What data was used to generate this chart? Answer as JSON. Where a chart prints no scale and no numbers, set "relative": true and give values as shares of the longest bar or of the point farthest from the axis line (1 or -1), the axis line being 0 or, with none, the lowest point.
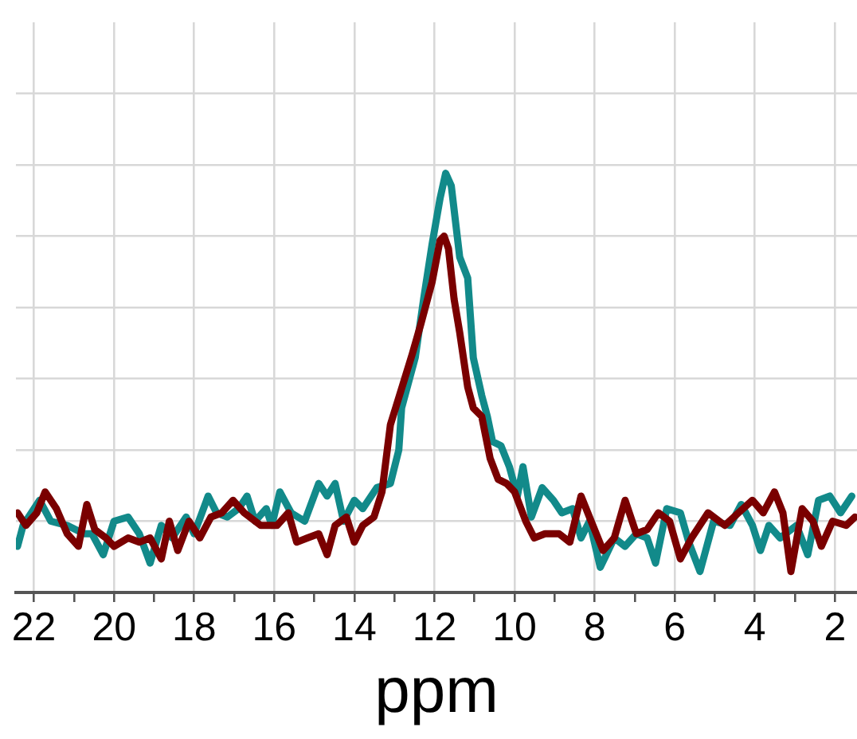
{
  "chart_data": {
    "type": "line",
    "xlabel": "ppm",
    "relative": true,
    "grid": true,
    "legend": false,
    "marker": "none",
    "line_style": "solid",
    "xlim": [
      22.45,
      1.45
    ],
    "xticks": [
      22,
      {
        "value": 21,
        "label": null
      },
      20,
      {
        "value": 19,
        "label": null
      },
      18,
      {
        "value": 17,
        "label": null
      },
      16,
      {
        "value": 15,
        "label": null
      },
      14,
      {
        "value": 13,
        "label": null
      },
      12,
      {
        "value": 11,
        "label": null
      },
      10,
      {
        "value": 9,
        "label": null
      },
      8,
      {
        "value": 7,
        "label": null
      },
      6,
      {
        "value": 5,
        "label": null
      },
      4,
      {
        "value": 3,
        "label": null
      },
      2
    ],
    "series": [
      {
        "color": "#7a0000",
        "x": [
          22.41,
          22.2,
          21.93,
          21.72,
          21.44,
          21.17,
          20.89,
          20.68,
          20.48,
          20.2,
          20.0,
          19.65,
          19.37,
          19.1,
          18.82,
          18.62,
          18.41,
          18.13,
          17.86,
          17.58,
          17.31,
          17.03,
          16.75,
          16.34,
          15.93,
          15.65,
          15.44,
          15.17,
          14.89,
          14.68,
          14.48,
          14.2,
          14.0,
          13.79,
          13.51,
          13.31,
          13.1,
          12.55,
          12.34,
          12.06,
          11.86,
          11.76,
          11.65,
          11.51,
          11.37,
          11.17,
          11.03,
          10.82,
          10.61,
          10.41,
          10.2,
          10.0,
          9.72,
          9.51,
          9.24,
          8.89,
          8.62,
          8.34,
          8.13,
          7.79,
          7.51,
          7.24,
          6.96,
          6.69,
          6.41,
          6.13,
          5.86,
          5.58,
          5.17,
          4.75,
          4.41,
          4.06,
          3.79,
          3.51,
          3.3,
          3.1,
          2.82,
          2.55,
          2.34,
          2.06,
          1.72,
          1.5
        ],
        "values": [
          0.19,
          0.16,
          0.19,
          0.24,
          0.2,
          0.14,
          0.11,
          0.21,
          0.15,
          0.13,
          0.11,
          0.13,
          0.12,
          0.13,
          0.08,
          0.17,
          0.1,
          0.17,
          0.13,
          0.18,
          0.19,
          0.22,
          0.19,
          0.16,
          0.16,
          0.19,
          0.12,
          0.13,
          0.14,
          0.09,
          0.16,
          0.18,
          0.12,
          0.16,
          0.18,
          0.24,
          0.4,
          0.57,
          0.64,
          0.74,
          0.84,
          0.85,
          0.82,
          0.7,
          0.62,
          0.49,
          0.44,
          0.42,
          0.32,
          0.27,
          0.26,
          0.24,
          0.17,
          0.13,
          0.14,
          0.14,
          0.12,
          0.23,
          0.18,
          0.1,
          0.13,
          0.22,
          0.14,
          0.15,
          0.19,
          0.17,
          0.08,
          0.13,
          0.19,
          0.16,
          0.19,
          0.22,
          0.19,
          0.24,
          0.19,
          0.05,
          0.2,
          0.17,
          0.11,
          0.17,
          0.16,
          0.18
        ]
      },
      {
        "color": "#128a8a",
        "x": [
          22.41,
          22.27,
          21.86,
          21.58,
          21.17,
          20.75,
          20.55,
          20.27,
          20.0,
          19.65,
          19.37,
          19.1,
          18.82,
          18.55,
          18.2,
          18.0,
          17.65,
          17.44,
          17.17,
          16.89,
          16.68,
          16.48,
          16.2,
          16.06,
          15.86,
          15.58,
          15.24,
          14.89,
          14.68,
          14.48,
          14.27,
          14.0,
          13.79,
          13.44,
          13.1,
          12.89,
          12.82,
          12.48,
          12.27,
          12.06,
          11.86,
          11.72,
          11.58,
          11.37,
          11.17,
          11.03,
          10.82,
          10.68,
          10.55,
          10.34,
          10.13,
          9.93,
          9.79,
          9.58,
          9.31,
          9.03,
          8.82,
          8.55,
          8.34,
          8.13,
          7.86,
          7.51,
          7.24,
          6.96,
          6.69,
          6.48,
          6.2,
          5.86,
          5.65,
          5.37,
          5.03,
          4.62,
          4.34,
          4.06,
          3.86,
          3.65,
          3.37,
          2.96,
          2.68,
          2.41,
          2.13,
          1.86,
          1.58
        ],
        "values": [
          0.11,
          0.16,
          0.22,
          0.17,
          0.16,
          0.14,
          0.14,
          0.09,
          0.17,
          0.18,
          0.14,
          0.07,
          0.16,
          0.13,
          0.18,
          0.14,
          0.23,
          0.19,
          0.18,
          0.2,
          0.23,
          0.17,
          0.2,
          0.16,
          0.24,
          0.19,
          0.17,
          0.26,
          0.23,
          0.26,
          0.17,
          0.22,
          0.2,
          0.25,
          0.26,
          0.34,
          0.44,
          0.56,
          0.7,
          0.83,
          0.94,
          1,
          0.97,
          0.8,
          0.75,
          0.56,
          0.47,
          0.42,
          0.36,
          0.35,
          0.3,
          0.23,
          0.3,
          0.18,
          0.25,
          0.22,
          0.19,
          0.2,
          0.13,
          0.17,
          0.06,
          0.13,
          0.11,
          0.14,
          0.13,
          0.07,
          0.2,
          0.19,
          0.12,
          0.05,
          0.17,
          0.16,
          0.21,
          0.16,
          0.1,
          0.16,
          0.13,
          0.16,
          0.09,
          0.22,
          0.23,
          0.19,
          0.23
        ]
      }
    ]
  }
}
